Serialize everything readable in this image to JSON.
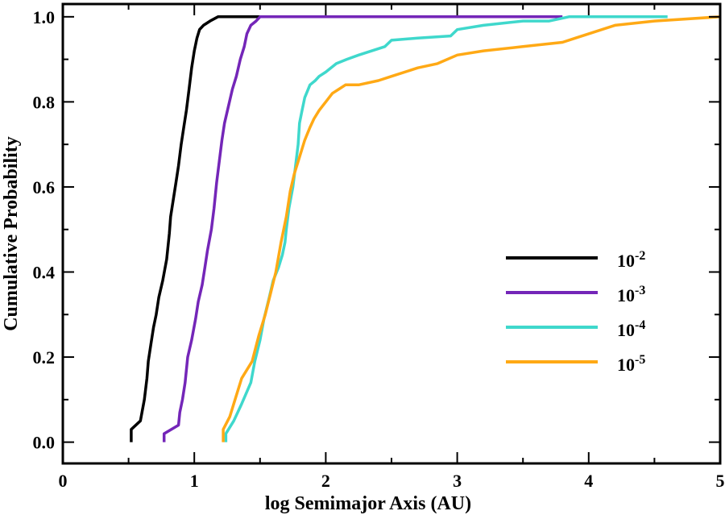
{
  "chart_data": {
    "type": "line",
    "xlabel": "log Semimajor Axis (AU)",
    "ylabel": "Cumulative Probability",
    "xlim": [
      0,
      5
    ],
    "ylim": [
      -0.05,
      1.03
    ],
    "xticks": [
      {
        "value": 0,
        "label": "0"
      },
      {
        "value": 1,
        "label": "1"
      },
      {
        "value": 2,
        "label": "2"
      },
      {
        "value": 3,
        "label": "3"
      },
      {
        "value": 4,
        "label": "4"
      },
      {
        "value": 5,
        "label": "5"
      }
    ],
    "yticks": [
      {
        "value": 0.0,
        "label": "0.0"
      },
      {
        "value": 0.2,
        "label": "0.2"
      },
      {
        "value": 0.4,
        "label": "0.4"
      },
      {
        "value": 0.6,
        "label": "0.6"
      },
      {
        "value": 0.8,
        "label": "0.8"
      },
      {
        "value": 1.0,
        "label": "1.0"
      }
    ],
    "legend_position": "lower-right",
    "grid": false,
    "series": [
      {
        "name": "10-2",
        "name_base": "10",
        "name_exp": "-2",
        "color": "#000000",
        "x": [
          0.52,
          0.52,
          0.59,
          0.62,
          0.64,
          0.65,
          0.67,
          0.69,
          0.71,
          0.73,
          0.76,
          0.79,
          0.81,
          0.82,
          0.84,
          0.86,
          0.88,
          0.9,
          0.92,
          0.94,
          0.96,
          0.98,
          1.0,
          1.02,
          1.04,
          1.07,
          1.12,
          1.18,
          1.23,
          1.26,
          1.35,
          1.6
        ],
        "y": [
          0.0,
          0.03,
          0.05,
          0.1,
          0.15,
          0.19,
          0.23,
          0.27,
          0.3,
          0.34,
          0.38,
          0.43,
          0.49,
          0.53,
          0.57,
          0.61,
          0.65,
          0.7,
          0.74,
          0.78,
          0.83,
          0.88,
          0.92,
          0.95,
          0.97,
          0.98,
          0.99,
          1.0,
          1.0,
          1.0,
          1.0,
          1.0
        ]
      },
      {
        "name": "10-3",
        "name_base": "10",
        "name_exp": "-3",
        "color": "#7426b8",
        "x": [
          0.77,
          0.77,
          0.88,
          0.89,
          0.91,
          0.93,
          0.95,
          0.98,
          1.01,
          1.03,
          1.06,
          1.08,
          1.1,
          1.13,
          1.15,
          1.17,
          1.19,
          1.21,
          1.23,
          1.26,
          1.29,
          1.32,
          1.35,
          1.38,
          1.4,
          1.43,
          1.47,
          1.5,
          1.53,
          1.9,
          3.8
        ],
        "y": [
          0.0,
          0.02,
          0.04,
          0.07,
          0.1,
          0.14,
          0.2,
          0.24,
          0.29,
          0.33,
          0.37,
          0.41,
          0.45,
          0.5,
          0.55,
          0.61,
          0.66,
          0.71,
          0.75,
          0.79,
          0.83,
          0.86,
          0.9,
          0.93,
          0.96,
          0.98,
          0.99,
          1.0,
          1.0,
          1.0,
          1.0
        ]
      },
      {
        "name": "10-4",
        "name_base": "10",
        "name_exp": "-4",
        "color": "#3fd8cc",
        "x": [
          1.24,
          1.24,
          1.3,
          1.36,
          1.43,
          1.46,
          1.5,
          1.53,
          1.57,
          1.6,
          1.64,
          1.67,
          1.69,
          1.7,
          1.72,
          1.75,
          1.77,
          1.79,
          1.8,
          1.82,
          1.84,
          1.88,
          1.92,
          1.95,
          2.0,
          2.08,
          2.16,
          2.25,
          2.35,
          2.45,
          2.5,
          2.7,
          2.95,
          3.0,
          3.2,
          3.5,
          3.7,
          3.85,
          4.0,
          4.6
        ],
        "y": [
          0.0,
          0.02,
          0.05,
          0.09,
          0.14,
          0.19,
          0.24,
          0.29,
          0.34,
          0.38,
          0.41,
          0.44,
          0.47,
          0.5,
          0.55,
          0.6,
          0.65,
          0.7,
          0.75,
          0.78,
          0.81,
          0.84,
          0.85,
          0.86,
          0.87,
          0.89,
          0.9,
          0.91,
          0.92,
          0.93,
          0.945,
          0.95,
          0.955,
          0.97,
          0.98,
          0.99,
          0.99,
          1.0,
          1.0,
          1.0
        ]
      },
      {
        "name": "10-5",
        "name_base": "10",
        "name_exp": "-5",
        "color": "#ffa915",
        "x": [
          1.22,
          1.22,
          1.27,
          1.31,
          1.36,
          1.44,
          1.49,
          1.54,
          1.58,
          1.62,
          1.66,
          1.7,
          1.73,
          1.76,
          1.8,
          1.84,
          1.88,
          1.91,
          1.95,
          2.0,
          2.05,
          2.1,
          2.15,
          2.25,
          2.4,
          2.5,
          2.7,
          2.85,
          3.0,
          3.2,
          3.5,
          3.8,
          3.9,
          4.0,
          4.2,
          4.5,
          5.0
        ],
        "y": [
          0.0,
          0.03,
          0.06,
          0.1,
          0.15,
          0.19,
          0.25,
          0.3,
          0.35,
          0.4,
          0.47,
          0.53,
          0.59,
          0.63,
          0.67,
          0.71,
          0.74,
          0.76,
          0.78,
          0.8,
          0.82,
          0.83,
          0.84,
          0.84,
          0.85,
          0.86,
          0.88,
          0.89,
          0.91,
          0.92,
          0.93,
          0.94,
          0.95,
          0.96,
          0.98,
          0.99,
          1.0
        ]
      }
    ]
  }
}
